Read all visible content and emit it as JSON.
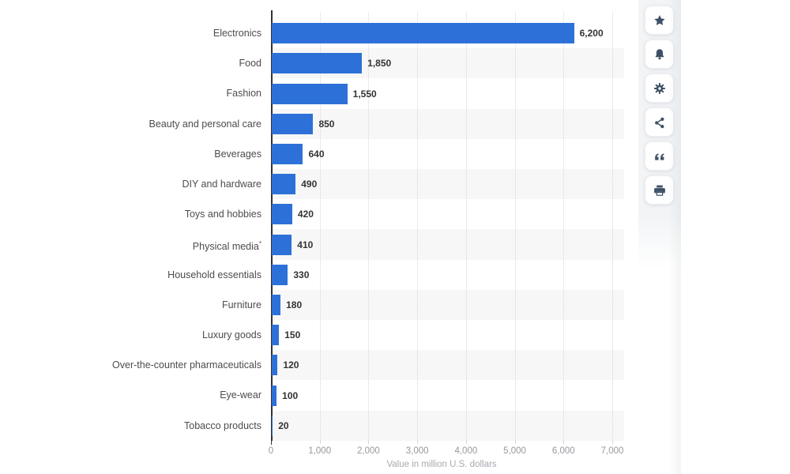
{
  "chart_data": {
    "type": "bar",
    "orientation": "horizontal",
    "title": "",
    "xlabel": "Value in million U.S. dollars",
    "categories": [
      "Electronics",
      "Food",
      "Fashion",
      "Beauty and personal care",
      "Beverages",
      "DIY and hardware",
      "Toys and hobbies",
      "Physical media*",
      "Household essentials",
      "Furniture",
      "Luxury goods",
      "Over-the-counter pharmaceuticals",
      "Eye-wear",
      "Tobacco products"
    ],
    "values": [
      6200,
      1850,
      1550,
      850,
      640,
      490,
      420,
      410,
      330,
      180,
      150,
      120,
      100,
      20
    ],
    "value_labels": [
      "6,200",
      "1,850",
      "1,550",
      "850",
      "640",
      "490",
      "420",
      "410",
      "330",
      "180",
      "150",
      "120",
      "100",
      "20"
    ],
    "x_ticks": [
      "0",
      "1,000",
      "2,000",
      "3,000",
      "4,000",
      "5,000",
      "6,000",
      "7,000"
    ],
    "xlim": [
      0,
      7000
    ],
    "grid": "vertical dotted gridlines",
    "legend": "none",
    "colors": {
      "bar": "#2d71d8",
      "stripe": "#f7f7f7",
      "axis": "#333333",
      "gridline": "#d7d7d7",
      "category_label": "#4c4c4e",
      "value_label": "#333333",
      "tick_label": "#95989c",
      "axis_title": "#a6abb1"
    }
  },
  "toolbar": {
    "icon_color": "#3d5166",
    "buttons": [
      {
        "label": "favorite",
        "icon": "star-icon"
      },
      {
        "label": "notifications",
        "icon": "bell-icon"
      },
      {
        "label": "settings",
        "icon": "gear-icon"
      },
      {
        "label": "share",
        "icon": "share-icon"
      },
      {
        "label": "cite",
        "icon": "quote-icon"
      },
      {
        "label": "print",
        "icon": "printer-icon"
      }
    ]
  }
}
